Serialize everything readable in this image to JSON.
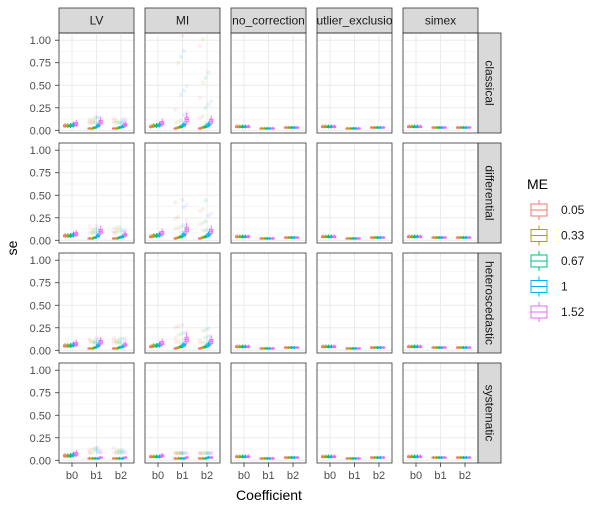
{
  "chart_data": {
    "type": "boxplot",
    "title": "",
    "xlabel": "Coefficient",
    "ylabel": "se",
    "x_categories": [
      "b0",
      "b1",
      "b2"
    ],
    "y_ticks": [
      "0.00",
      "0.25",
      "0.50",
      "0.75",
      "1.00"
    ],
    "ylim": [
      -0.03,
      1.08
    ],
    "grid": true,
    "legend": {
      "title": "ME",
      "placement": "right",
      "entries": [
        {
          "label": "0.05",
          "color": "#F8766D"
        },
        {
          "label": "0.33",
          "color": "#A3A500"
        },
        {
          "label": "0.67",
          "color": "#00BF7D"
        },
        {
          "label": "1",
          "color": "#00B0F6"
        },
        {
          "label": "1.52",
          "color": "#E76BF3"
        }
      ]
    },
    "column_facets": [
      "LV",
      "MI",
      "no_correction",
      "outlier_exclusion",
      "simex"
    ],
    "row_facets": [
      "classical",
      "differential",
      "heteroscedastic",
      "systematic"
    ],
    "median_se_by_row": {
      "classical": {
        "LV": {
          "b0": [
            0.05,
            0.05,
            0.05,
            0.06,
            0.07
          ],
          "b1": [
            0.02,
            0.02,
            0.03,
            0.05,
            0.09
          ],
          "b2": [
            0.02,
            0.02,
            0.03,
            0.04,
            0.06
          ]
        },
        "MI": {
          "b0": [
            0.04,
            0.05,
            0.05,
            0.06,
            0.08
          ],
          "b1": [
            0.02,
            0.03,
            0.04,
            0.06,
            0.12
          ],
          "b2": [
            0.02,
            0.03,
            0.04,
            0.06,
            0.1
          ]
        },
        "no_correction": {
          "b0": [
            0.04,
            0.04,
            0.04,
            0.04,
            0.04
          ],
          "b1": [
            0.02,
            0.02,
            0.02,
            0.02,
            0.02
          ],
          "b2": [
            0.03,
            0.03,
            0.03,
            0.03,
            0.03
          ]
        },
        "outlier_exclusion": {
          "b0": [
            0.04,
            0.04,
            0.04,
            0.04,
            0.04
          ],
          "b1": [
            0.02,
            0.02,
            0.02,
            0.02,
            0.02
          ],
          "b2": [
            0.03,
            0.03,
            0.03,
            0.03,
            0.03
          ]
        },
        "simex": {
          "b0": [
            0.04,
            0.04,
            0.04,
            0.04,
            0.04
          ],
          "b1": [
            0.03,
            0.03,
            0.03,
            0.03,
            0.03
          ],
          "b2": [
            0.03,
            0.03,
            0.03,
            0.03,
            0.03
          ]
        }
      },
      "differential": {
        "LV": {
          "b0": [
            0.05,
            0.05,
            0.05,
            0.06,
            0.07
          ],
          "b1": [
            0.02,
            0.02,
            0.03,
            0.05,
            0.1
          ],
          "b2": [
            0.02,
            0.02,
            0.03,
            0.04,
            0.06
          ]
        },
        "MI": {
          "b0": [
            0.04,
            0.05,
            0.05,
            0.06,
            0.08
          ],
          "b1": [
            0.02,
            0.03,
            0.04,
            0.06,
            0.12
          ],
          "b2": [
            0.02,
            0.03,
            0.04,
            0.06,
            0.1
          ]
        },
        "no_correction": {
          "b0": [
            0.04,
            0.04,
            0.04,
            0.04,
            0.04
          ],
          "b1": [
            0.02,
            0.02,
            0.02,
            0.02,
            0.02
          ],
          "b2": [
            0.03,
            0.03,
            0.03,
            0.03,
            0.03
          ]
        },
        "outlier_exclusion": {
          "b0": [
            0.04,
            0.04,
            0.04,
            0.04,
            0.04
          ],
          "b1": [
            0.02,
            0.02,
            0.02,
            0.02,
            0.02
          ],
          "b2": [
            0.03,
            0.03,
            0.03,
            0.03,
            0.03
          ]
        },
        "simex": {
          "b0": [
            0.04,
            0.04,
            0.04,
            0.04,
            0.04
          ],
          "b1": [
            0.03,
            0.03,
            0.03,
            0.03,
            0.03
          ],
          "b2": [
            0.03,
            0.03,
            0.03,
            0.03,
            0.03
          ]
        }
      },
      "heteroscedastic": {
        "LV": {
          "b0": [
            0.05,
            0.05,
            0.05,
            0.06,
            0.07
          ],
          "b1": [
            0.02,
            0.02,
            0.03,
            0.05,
            0.09
          ],
          "b2": [
            0.02,
            0.02,
            0.03,
            0.04,
            0.06
          ]
        },
        "MI": {
          "b0": [
            0.04,
            0.05,
            0.05,
            0.06,
            0.08
          ],
          "b1": [
            0.02,
            0.03,
            0.04,
            0.06,
            0.12
          ],
          "b2": [
            0.02,
            0.03,
            0.04,
            0.06,
            0.1
          ]
        },
        "no_correction": {
          "b0": [
            0.04,
            0.04,
            0.04,
            0.04,
            0.04
          ],
          "b1": [
            0.02,
            0.02,
            0.02,
            0.02,
            0.02
          ],
          "b2": [
            0.03,
            0.03,
            0.03,
            0.03,
            0.03
          ]
        },
        "outlier_exclusion": {
          "b0": [
            0.04,
            0.04,
            0.04,
            0.04,
            0.04
          ],
          "b1": [
            0.02,
            0.02,
            0.02,
            0.02,
            0.02
          ],
          "b2": [
            0.03,
            0.03,
            0.03,
            0.03,
            0.03
          ]
        },
        "simex": {
          "b0": [
            0.04,
            0.04,
            0.04,
            0.04,
            0.04
          ],
          "b1": [
            0.03,
            0.03,
            0.03,
            0.03,
            0.03
          ],
          "b2": [
            0.03,
            0.03,
            0.03,
            0.03,
            0.03
          ]
        }
      },
      "systematic": {
        "LV": {
          "b0": [
            0.05,
            0.05,
            0.05,
            0.06,
            0.07
          ],
          "b1": [
            0.02,
            0.02,
            0.02,
            0.02,
            0.03
          ],
          "b2": [
            0.02,
            0.02,
            0.02,
            0.02,
            0.03
          ]
        },
        "MI": {
          "b0": [
            0.04,
            0.04,
            0.04,
            0.04,
            0.05
          ],
          "b1": [
            0.02,
            0.02,
            0.02,
            0.02,
            0.03
          ],
          "b2": [
            0.02,
            0.02,
            0.02,
            0.03,
            0.03
          ]
        },
        "no_correction": {
          "b0": [
            0.04,
            0.04,
            0.04,
            0.04,
            0.04
          ],
          "b1": [
            0.02,
            0.02,
            0.02,
            0.02,
            0.02
          ],
          "b2": [
            0.03,
            0.03,
            0.03,
            0.03,
            0.03
          ]
        },
        "outlier_exclusion": {
          "b0": [
            0.04,
            0.04,
            0.04,
            0.04,
            0.04
          ],
          "b1": [
            0.02,
            0.02,
            0.02,
            0.02,
            0.02
          ],
          "b2": [
            0.03,
            0.03,
            0.03,
            0.03,
            0.03
          ]
        },
        "simex": {
          "b0": [
            0.04,
            0.04,
            0.04,
            0.04,
            0.04
          ],
          "b1": [
            0.03,
            0.03,
            0.03,
            0.03,
            0.03
          ],
          "b2": [
            0.03,
            0.03,
            0.03,
            0.03,
            0.03
          ]
        }
      }
    },
    "outlier_maxima": {
      "classical": {
        "MI": 1.05,
        "LV": 0.15
      },
      "differential": {
        "MI": 0.45,
        "LV": 0.16
      },
      "heteroscedastic": {
        "MI": 0.28,
        "LV": 0.14
      },
      "systematic": {
        "LV": 0.14,
        "MI": 0.08
      }
    }
  }
}
